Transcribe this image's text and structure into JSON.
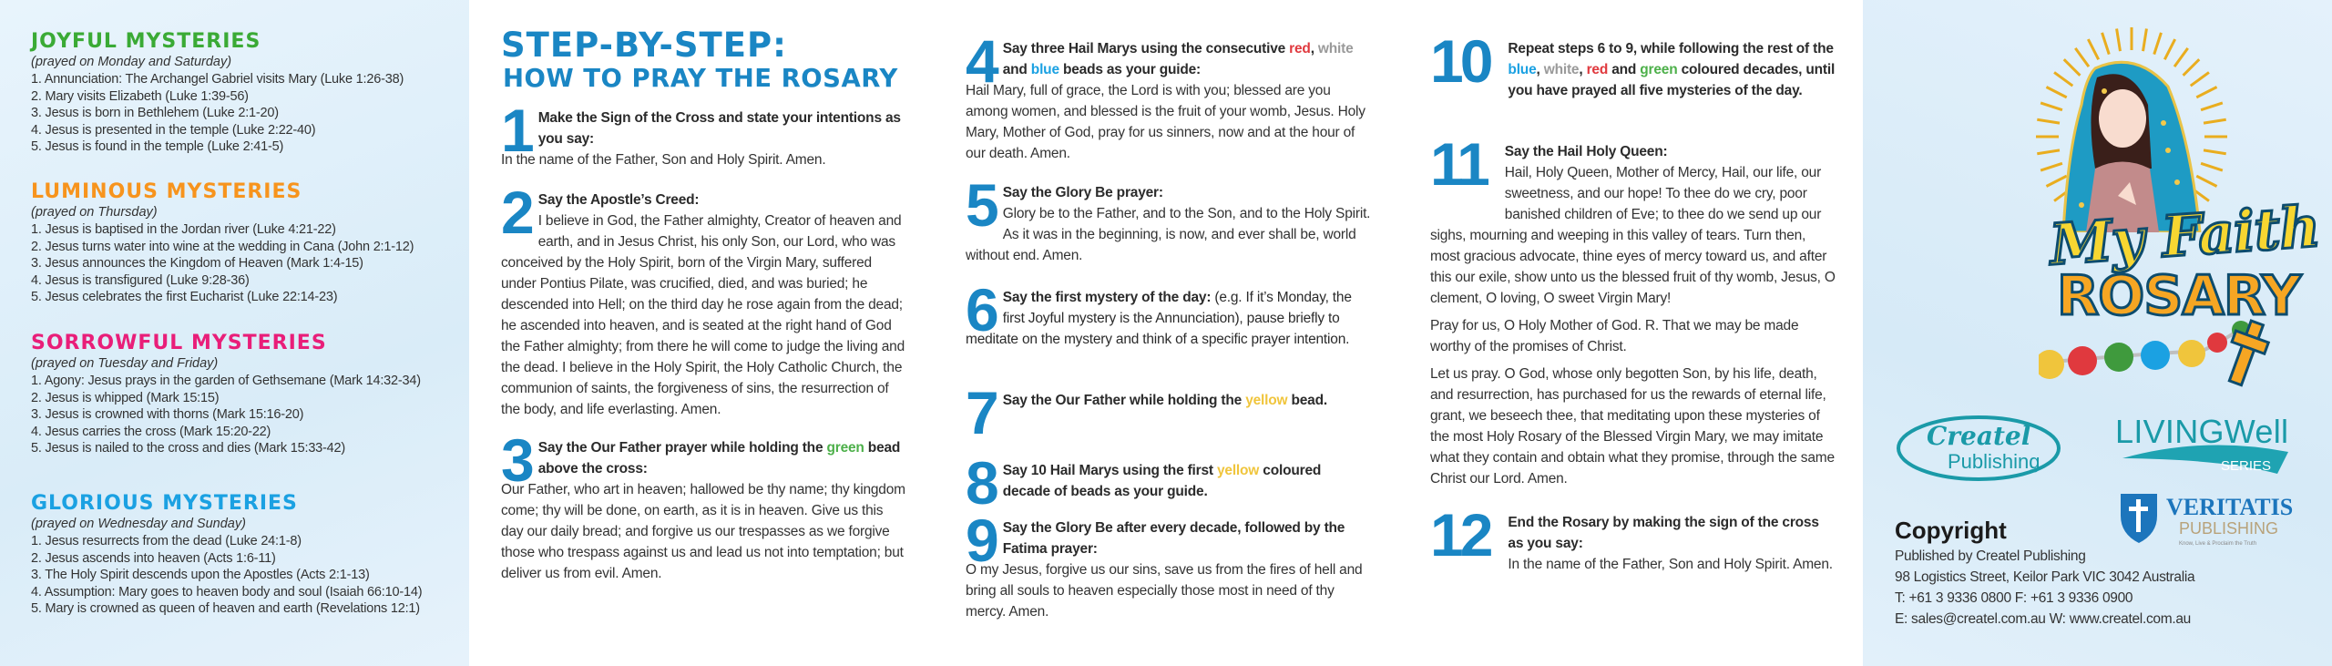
{
  "mysteries": [
    {
      "title": "JOYFUL MYSTERIES",
      "color": "#3aaa35",
      "days": "(prayed on Monday and Saturday)",
      "items": [
        "1. Annunciation: The Archangel Gabriel visits Mary (Luke 1:26-38)",
        "2. Mary visits Elizabeth (Luke 1:39-56)",
        "3. Jesus is born in Bethlehem (Luke 2:1-20)",
        "4. Jesus is presented in the temple (Luke 2:22-40)",
        "5. Jesus is found in the temple (Luke 2:41-5)"
      ]
    },
    {
      "title": "LUMINOUS MYSTERIES",
      "color": "#f7941d",
      "days": "(prayed on Thursday)",
      "items": [
        "1. Jesus is baptised in the Jordan river (Luke 4:21-22)",
        "2. Jesus turns water into wine at the wedding in Cana (John 2:1-12)",
        "3. Jesus announces the Kingdom of Heaven (Mark 1:4-15)",
        "4. Jesus is transfigured (Luke 9:28-36)",
        "5. Jesus celebrates the first Eucharist (Luke 22:14-23)"
      ]
    },
    {
      "title": "SORROWFUL MYSTERIES",
      "color": "#e91e79",
      "days": "(prayed on Tuesday and Friday)",
      "items": [
        "1. Agony: Jesus prays in the garden of Gethsemane (Mark 14:32-34)",
        "2. Jesus is whipped (Mark 15:15)",
        "3. Jesus is crowned with thorns (Mark 15:16-20)",
        "4. Jesus carries the cross (Mark 15:20-22)",
        "5. Jesus is nailed to the cross and dies (Mark 15:33-42)"
      ]
    },
    {
      "title": "GLORIOUS MYSTERIES",
      "color": "#1ba1e2",
      "days": "(prayed on Wednesday and Sunday)",
      "items": [
        "1. Jesus resurrects from the dead (Luke 24:1-8)",
        "2. Jesus ascends into heaven (Acts 1:6-11)",
        "3. The Holy Spirit descends upon the Apostles (Acts 2:1-13)",
        "4. Assumption: Mary goes to heaven body and soul (Isaiah 66:10-14)",
        "5. Mary is crowned as queen of heaven and earth (Revelations 12:1)"
      ]
    }
  ],
  "guide": {
    "title_line1": "STEP-BY-STEP:",
    "title_line2": "HOW TO PRAY THE ROSARY",
    "accent": "#1a86c4",
    "steps": [
      {
        "number": "1",
        "heading": [
          {
            "text": "Make the Sign of the Cross and state your intentions as you say:"
          }
        ],
        "body": [
          "In the name of the Father, Son and Holy Spirit. Amen."
        ]
      },
      {
        "number": "2",
        "heading": [
          {
            "text": "Say the Apostle’s Creed:"
          }
        ],
        "body": [
          "I believe in God, the Father almighty, Creator of heaven and earth, and in Jesus Christ, his only Son, our Lord, who was conceived by the Holy Spirit, born of the Virgin Mary, suffered under Pontius Pilate, was crucified, died, and was buried; he descended into Hell; on the third day he rose again from the dead; he ascended into heaven, and is seated at the right hand of God the Father almighty; from there he will come to judge the living and the dead. I believe in the Holy Spirit, the Holy Catholic Church, the communion of saints, the forgiveness of sins, the resurrection of the body, and life everlasting. Amen."
        ]
      },
      {
        "number": "3",
        "heading": [
          {
            "text": "Say the Our Father prayer while holding the "
          },
          {
            "text": "green",
            "color": "#4db04a"
          },
          {
            "text": " bead above the cross:"
          }
        ],
        "body": [
          "Our Father, who art in heaven; hallowed be thy name; thy kingdom come; thy will be done, on earth, as it is in heaven. Give us this day our daily bread; and forgive us our trespasses as we forgive those who trespass against us and lead us not into temptation; but deliver us from evil. Amen."
        ]
      },
      {
        "number": "4",
        "heading": [
          {
            "text": "Say three Hail Marys using the consecutive "
          },
          {
            "text": "red",
            "color": "#e0393e"
          },
          {
            "text": ", "
          },
          {
            "text": "white",
            "color": "#9a9a9a"
          },
          {
            "text": " and "
          },
          {
            "text": "blue",
            "color": "#1ba1e2"
          },
          {
            "text": " beads as your guide:"
          }
        ],
        "body": [
          "Hail Mary, full of grace, the Lord is with you; blessed are you among women, and blessed is the fruit of your womb, Jesus. Holy Mary, Mother of God, pray for us sinners, now and at the hour of our death. Amen."
        ]
      },
      {
        "number": "5",
        "heading": [
          {
            "text": "Say the Glory Be prayer:"
          }
        ],
        "body": [
          "Glory be to the Father, and to the Son, and to the Holy Spirit. As it was in the beginning, is now, and ever shall be, world without end. Amen."
        ]
      },
      {
        "number": "6",
        "heading": [
          {
            "text": "Say the first mystery of the day:"
          },
          {
            "text": " (e.g. If it’s Monday, the first Joyful mystery is the Annunciation), pause briefly to meditate on the mystery and think of a specific prayer intention.",
            "plain": true
          }
        ],
        "body": []
      },
      {
        "number": "7",
        "heading": [
          {
            "text": "Say the Our Father while holding the "
          },
          {
            "text": "yellow",
            "color": "#f0c53c"
          },
          {
            "text": " bead."
          }
        ],
        "body": []
      },
      {
        "number": "8",
        "heading": [
          {
            "text": "Say 10 Hail Marys using the first "
          },
          {
            "text": "yellow",
            "color": "#f0c53c"
          },
          {
            "text": " coloured decade of beads as your guide."
          }
        ],
        "body": []
      },
      {
        "number": "9",
        "heading": [
          {
            "text": "Say the Glory Be after every decade, followed by the Fatima prayer:"
          }
        ],
        "body": [
          "O my Jesus, forgive us our sins, save us from the fires of hell and bring all souls to heaven especially those most in need of thy mercy. Amen."
        ]
      },
      {
        "number": "10",
        "heading": [
          {
            "text": "Repeat steps 6 to 9, while following the rest of the "
          },
          {
            "text": "blue",
            "color": "#1ba1e2"
          },
          {
            "text": ", "
          },
          {
            "text": "white",
            "color": "#9a9a9a"
          },
          {
            "text": ", "
          },
          {
            "text": "red",
            "color": "#e0393e"
          },
          {
            "text": " and "
          },
          {
            "text": "green",
            "color": "#4db04a"
          },
          {
            "text": " coloured decades, until you have prayed all five mysteries of the day."
          }
        ],
        "body": []
      },
      {
        "number": "11",
        "heading": [
          {
            "text": "Say the Hail Holy Queen:"
          }
        ],
        "body": [
          "Hail, Holy Queen, Mother of Mercy, Hail, our life, our sweetness, and our hope! To thee do we cry, poor banished children of Eve; to thee do we send up our sighs, mourning and weeping in this valley of tears. Turn then, most gracious advocate, thine eyes of mercy toward us, and after this our exile, show unto us the blessed fruit of thy womb, Jesus, O clement, O loving, O sweet Virgin Mary!",
          "Pray for us, O Holy Mother of God. R. That we may be made worthy of the promises of Christ.",
          "Let us pray. O God, whose only begotten Son, by his life, death, and resurrection, has purchased for us the rewards of eternal life, grant, we beseech thee, that meditating upon these mysteries of the most Holy Rosary of the Blessed Virgin Mary, we may imitate what they contain and obtain what they promise, through the same Christ our Lord. Amen."
        ]
      },
      {
        "number": "12",
        "heading": [
          {
            "text": "End the Rosary by making the sign of the cross as you say:"
          }
        ],
        "body": [
          "In the name of the Father, Son and Holy Spirit. Amen."
        ]
      }
    ]
  },
  "cover": {
    "logo_line1": "My Faith",
    "logo_line2": "ROSARY",
    "logo_colors": {
      "faith": "#f7d631",
      "rosary": "#f6a623",
      "outline": "#0d4c6e"
    },
    "bead_colors": [
      "#f0c53c",
      "#e0393e",
      "#3f9a3d",
      "#1ba1e2",
      "#f0c53c",
      "#e0393e",
      "#3f9a3d"
    ]
  },
  "publishers": {
    "createl": {
      "line1": "Createl",
      "line2": "Publishing",
      "color": "#1a9aa8"
    },
    "livingwell": {
      "name": "LIVINGWell",
      "series": "SERIES",
      "color": "#1a9aa8"
    },
    "veritatis": {
      "name": "VERITATIS",
      "sub": "PUBLISHING",
      "tagline": "Know, Live & Proclaim the Truth"
    }
  },
  "copyright": {
    "heading": "Copyright",
    "lines": [
      "Published by Createl Publishing",
      "98 Logistics Street, Keilor Park VIC 3042 Australia",
      "T: +61 3 9336 0800 F: +61 3 9336 0900",
      "E: sales@createl.com.au W: www.createl.com.au"
    ]
  }
}
